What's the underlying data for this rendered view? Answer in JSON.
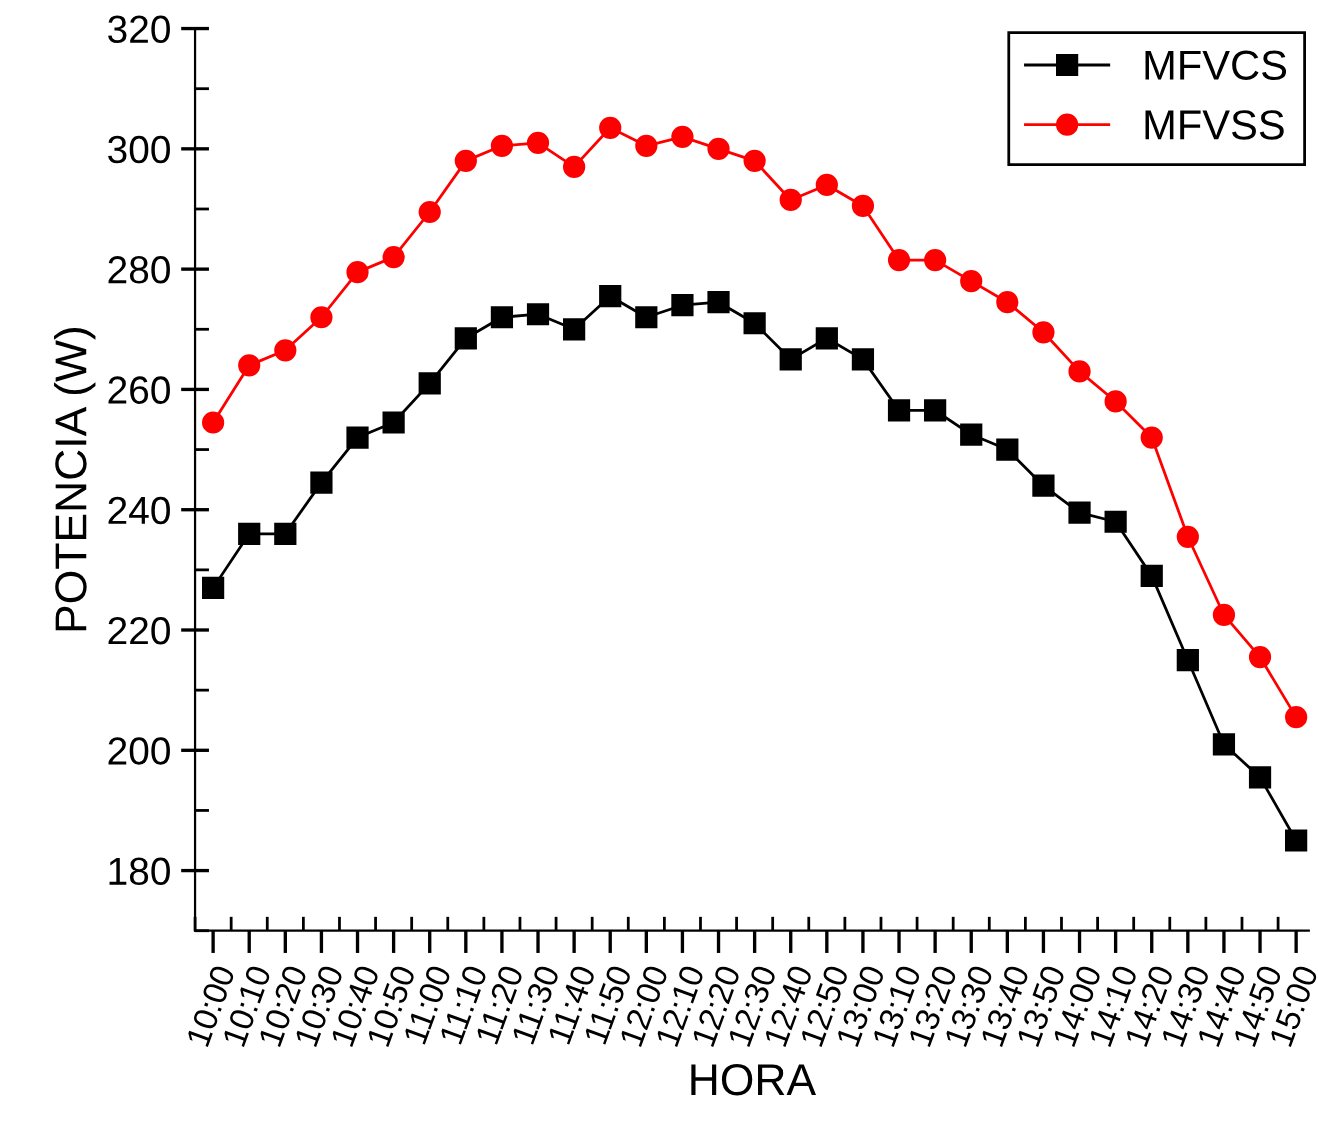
{
  "chart_data": {
    "type": "line",
    "xlabel": "HORA",
    "ylabel": "POTENCIA (W)",
    "categories": [
      "10:00",
      "10:10",
      "10:20",
      "10:30",
      "10:40",
      "10:50",
      "11:00",
      "11:10",
      "11:20",
      "11:30",
      "11:40",
      "11:50",
      "12:00",
      "12:10",
      "12:20",
      "12:30",
      "12:40",
      "12:50",
      "13:00",
      "13:10",
      "13:20",
      "13:30",
      "13:40",
      "13:50",
      "14:00",
      "14:10",
      "14:20",
      "14:30",
      "14:40",
      "14:50",
      "15:00"
    ],
    "series": [
      {
        "name": "MFVCS",
        "color": "#000000",
        "marker": "square",
        "values": [
          227,
          236,
          236,
          244.5,
          252,
          254.5,
          261,
          268.5,
          272,
          272.5,
          270,
          275.5,
          272,
          274,
          274.5,
          271,
          265,
          268.5,
          265,
          256.5,
          256.5,
          252.5,
          250,
          244,
          239.5,
          238,
          229,
          215,
          201,
          195.5,
          185
        ]
      },
      {
        "name": "MFVSS",
        "color": "#ff0000",
        "marker": "circle",
        "values": [
          254.5,
          264,
          266.5,
          272,
          279.5,
          282,
          289.5,
          298,
          300.5,
          301,
          297,
          303.5,
          300.5,
          302,
          300,
          298,
          291.5,
          294,
          290.5,
          281.5,
          281.5,
          278,
          274.5,
          269.5,
          263,
          258,
          252,
          235.5,
          222.5,
          215.5,
          205.5
        ]
      }
    ],
    "ylim": [
      170,
      320
    ],
    "yticks": [
      180,
      200,
      220,
      240,
      260,
      280,
      300,
      320
    ],
    "grid": false,
    "legend": "top right",
    "line_style": "solid"
  }
}
